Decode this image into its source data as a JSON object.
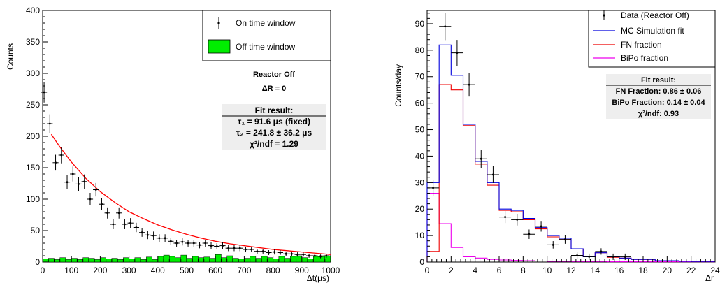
{
  "chart_data": [
    {
      "type": "scatter",
      "xlabel": "Δt(μs)",
      "ylabel": "Counts",
      "xlim": [
        0,
        1000
      ],
      "ylim": [
        0,
        400
      ],
      "x_ticks": [
        "0",
        "100",
        "200",
        "300",
        "400",
        "500",
        "600",
        "700",
        "800",
        "900",
        "1000"
      ],
      "y_ticks": [
        "0",
        "50",
        "100",
        "150",
        "200",
        "250",
        "300",
        "350",
        "400"
      ],
      "legend": {
        "placement": "top-right",
        "entries": [
          "On time window",
          "Off time window"
        ]
      },
      "series": [
        {
          "name": "On time window",
          "color": "#000000",
          "x": [
            5,
            25,
            45,
            65,
            85,
            105,
            125,
            145,
            165,
            185,
            205,
            225,
            245,
            265,
            285,
            305,
            325,
            345,
            365,
            385,
            405,
            425,
            445,
            465,
            485,
            505,
            525,
            545,
            565,
            585,
            605,
            625,
            645,
            665,
            685,
            705,
            725,
            745,
            765,
            785,
            805,
            825,
            845,
            865,
            885,
            905,
            925,
            945,
            965,
            985
          ],
          "y": [
            270,
            220,
            158,
            170,
            127,
            140,
            124,
            128,
            100,
            115,
            92,
            78,
            60,
            78,
            60,
            62,
            55,
            47,
            43,
            42,
            38,
            38,
            33,
            30,
            32,
            30,
            30,
            27,
            30,
            26,
            25,
            26,
            22,
            22,
            22,
            20,
            20,
            17,
            17,
            15,
            16,
            15,
            13,
            13,
            12,
            12,
            10,
            10,
            9,
            10
          ],
          "xerr": 10
        },
        {
          "name": "Off time window",
          "type": "histogram",
          "color": "#00ee00",
          "bin_width": 20,
          "x": [
            10,
            30,
            50,
            70,
            90,
            110,
            130,
            150,
            170,
            190,
            210,
            230,
            250,
            270,
            290,
            310,
            330,
            350,
            370,
            390,
            410,
            430,
            450,
            470,
            490,
            510,
            530,
            550,
            570,
            590,
            610,
            630,
            650,
            670,
            690,
            710,
            730,
            750,
            770,
            790,
            810,
            830,
            850,
            870,
            890,
            910,
            930,
            950,
            970,
            990
          ],
          "y": [
            5,
            6,
            4,
            7,
            4,
            6,
            4,
            7,
            6,
            4,
            7,
            5,
            6,
            4,
            7,
            5,
            7,
            4,
            8,
            4,
            9,
            11,
            9,
            7,
            11,
            6,
            9,
            7,
            8,
            6,
            12,
            7,
            10,
            6,
            5,
            6,
            9,
            6,
            9,
            7,
            5,
            9,
            6,
            9,
            10,
            7,
            5,
            9,
            10,
            10
          ]
        },
        {
          "name": "fit",
          "type": "line",
          "color": "#ff0000",
          "x": [
            30,
            60,
            100,
            150,
            200,
            250,
            300,
            350,
            400,
            450,
            500,
            550,
            600,
            650,
            700,
            750,
            800,
            850,
            900,
            950,
            1000
          ],
          "y": [
            203,
            183,
            159,
            133,
            112,
            95,
            80,
            69,
            59,
            51,
            44,
            38,
            33,
            29,
            26,
            23,
            20,
            18,
            16,
            14,
            12
          ]
        }
      ],
      "annotations": [
        "Reactor Off",
        "ΔR = 0"
      ],
      "fit_box": {
        "title": "Fit result:",
        "lines": [
          "τ₁ = 91.6 μs (fixed)",
          "τ₂ = 241.8 ± 36.2 μs",
          "χ²/ndf = 1.29"
        ]
      }
    },
    {
      "type": "line",
      "xlabel": "Δr",
      "ylabel": "Counts/day",
      "xlim": [
        0,
        24
      ],
      "ylim": [
        0,
        95
      ],
      "x_ticks": [
        "0",
        "2",
        "4",
        "6",
        "8",
        "10",
        "12",
        "14",
        "16",
        "18",
        "20",
        "22",
        "24"
      ],
      "y_ticks": [
        "0",
        "10",
        "20",
        "30",
        "40",
        "50",
        "60",
        "70",
        "80",
        "90"
      ],
      "legend": {
        "placement": "top-right",
        "entries": [
          "Data (Reactor Off)",
          "MC Simulation fit",
          "FN fraction",
          "BiPo fraction"
        ]
      },
      "bin_edges": [
        0,
        1,
        2,
        3,
        4,
        5,
        6,
        7,
        8,
        9,
        10,
        11,
        12,
        13,
        14,
        15,
        16,
        17,
        18,
        19,
        20,
        21,
        22,
        23,
        24
      ],
      "series": [
        {
          "name": "Data (Reactor Off)",
          "color": "#000000",
          "x": [
            0.5,
            1.5,
            2.5,
            3.5,
            4.5,
            5.5,
            6.5,
            7.5,
            8.5,
            9.5,
            10.5,
            11.5,
            12.5,
            13.5,
            14.5,
            15.5,
            16.5
          ],
          "y": [
            28,
            89,
            79,
            67,
            39,
            33,
            17,
            16,
            10.5,
            13.5,
            6.5,
            8.5,
            2.5,
            2,
            4,
            2,
            2
          ],
          "xerr": 0.5
        },
        {
          "name": "MC Simulation fit",
          "color": "#0000dd",
          "y": [
            30,
            82,
            70.5,
            52,
            38,
            30,
            20,
            19.5,
            16.5,
            13,
            10,
            9,
            5,
            2,
            3.5,
            2,
            1.5,
            1,
            1,
            0.5,
            0.5,
            0.3,
            0.2,
            0.2
          ]
        },
        {
          "name": "FN fraction",
          "color": "#ee0000",
          "y": [
            4,
            67,
            65,
            51.5,
            37,
            29,
            19.5,
            19,
            16,
            12.5,
            9.5,
            8.5,
            5,
            2,
            3.5,
            1.8,
            1.5,
            1,
            1,
            0.5,
            0.5,
            0.3,
            0.2,
            0.2
          ]
        },
        {
          "name": "BiPo fraction",
          "color": "#ee00ee",
          "y": [
            26,
            14.5,
            5.5,
            2,
            1.5,
            1,
            0.8,
            0.6,
            0.5,
            0.4,
            0.3,
            0.3,
            0.2,
            0.2,
            0.2,
            0.1,
            0.1,
            0.1,
            0.1,
            0.1,
            0.1,
            0.1,
            0.1,
            0.1
          ]
        }
      ],
      "fit_box": {
        "title": "Fit result:",
        "lines": [
          "FN Fraction: 0.86 ± 0.06",
          "BiPo Fraction: 0.14 ± 0.04",
          "χ²/ndf: 0.93"
        ]
      }
    }
  ]
}
